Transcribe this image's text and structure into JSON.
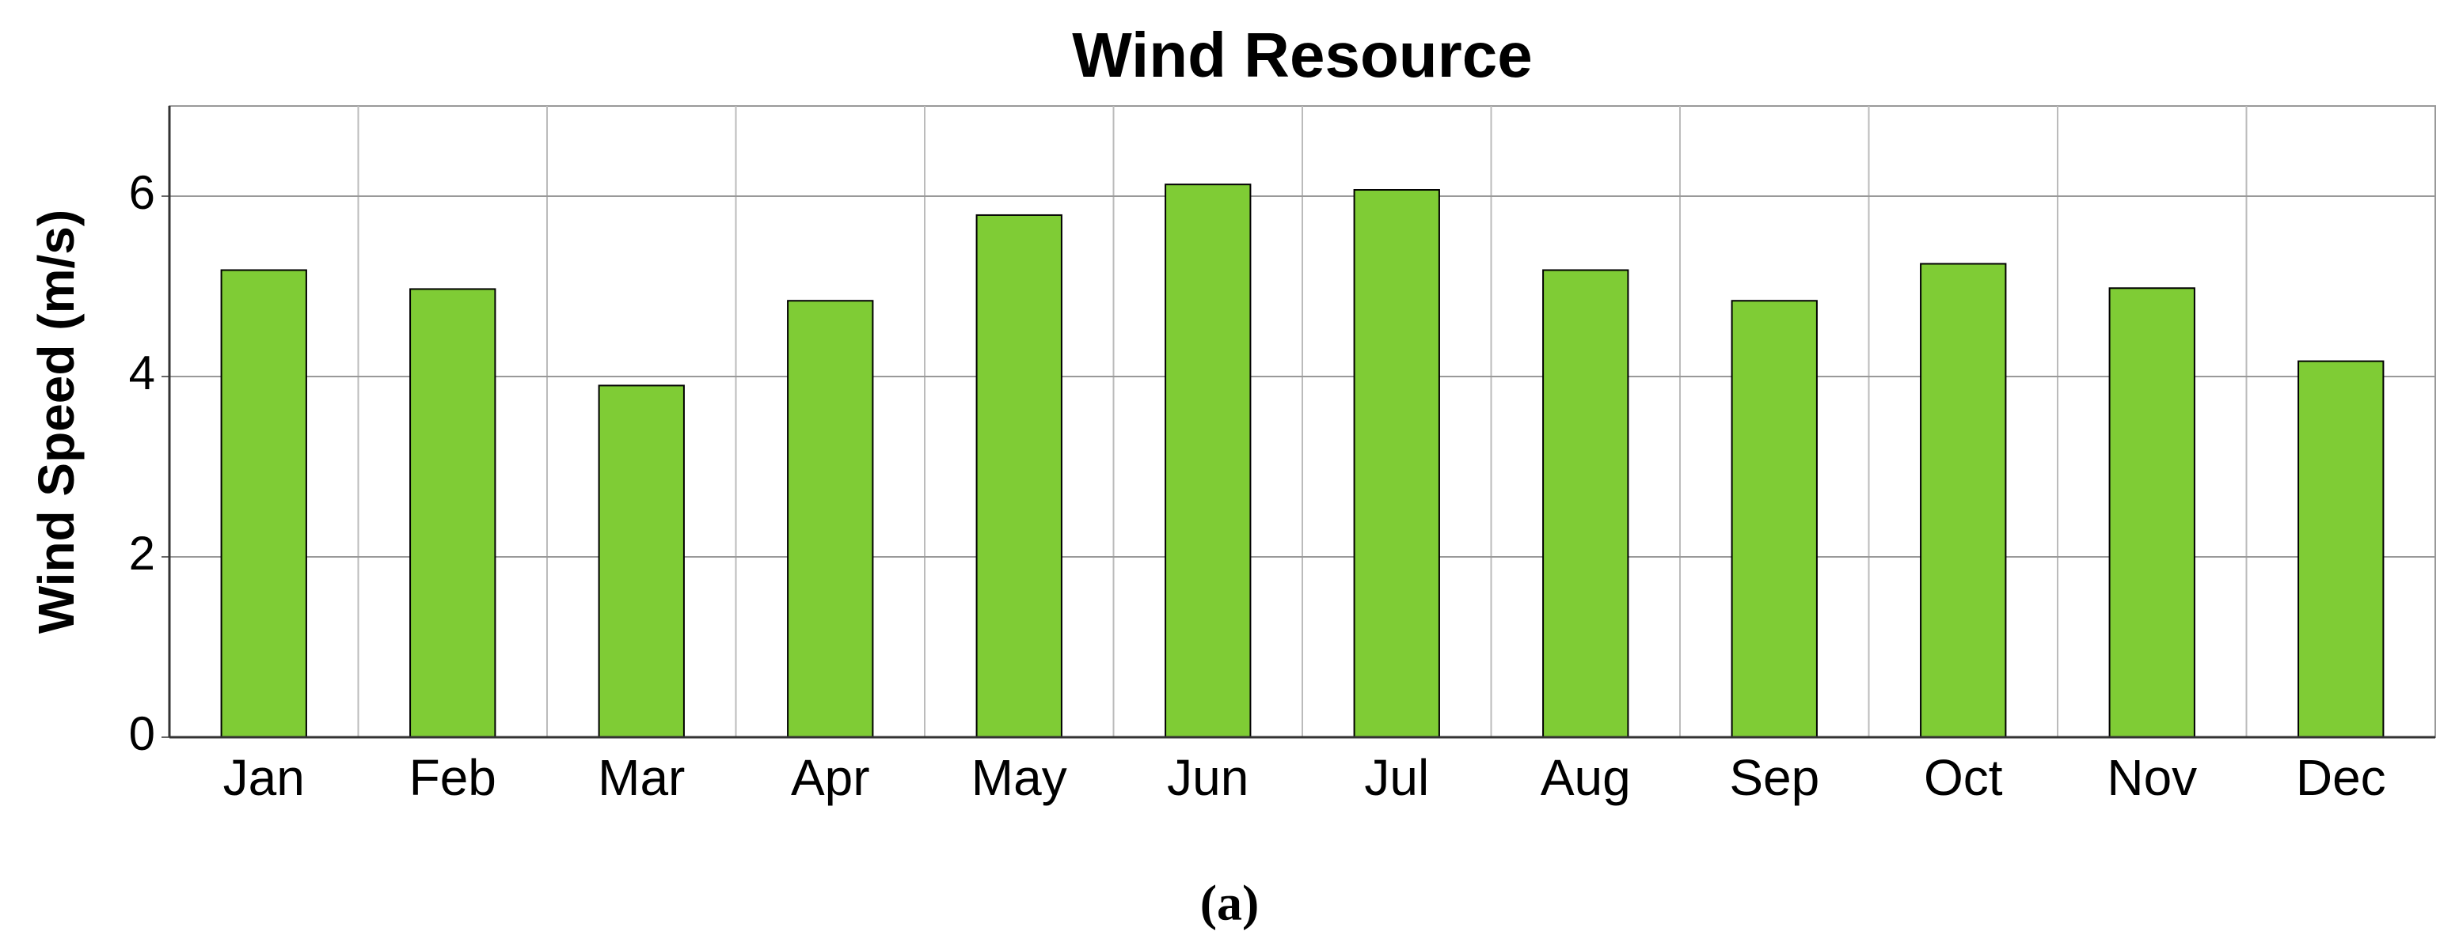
{
  "chart_data": {
    "type": "bar",
    "title": "Wind Resource",
    "y_label": "Wind Speed (m/s)",
    "categories": [
      "Jan",
      "Feb",
      "Mar",
      "Apr",
      "May",
      "Jun",
      "Jul",
      "Aug",
      "Sep",
      "Oct",
      "Nov",
      "Dec"
    ],
    "values": [
      5.18,
      4.97,
      3.9,
      4.84,
      5.79,
      6.13,
      6.07,
      5.18,
      4.84,
      5.25,
      4.98,
      4.17
    ],
    "color": "#7fcc35",
    "ylim": [
      0,
      7
    ],
    "yticks": [
      0,
      2,
      4,
      6
    ],
    "grid": true
  },
  "caption": "(a)"
}
